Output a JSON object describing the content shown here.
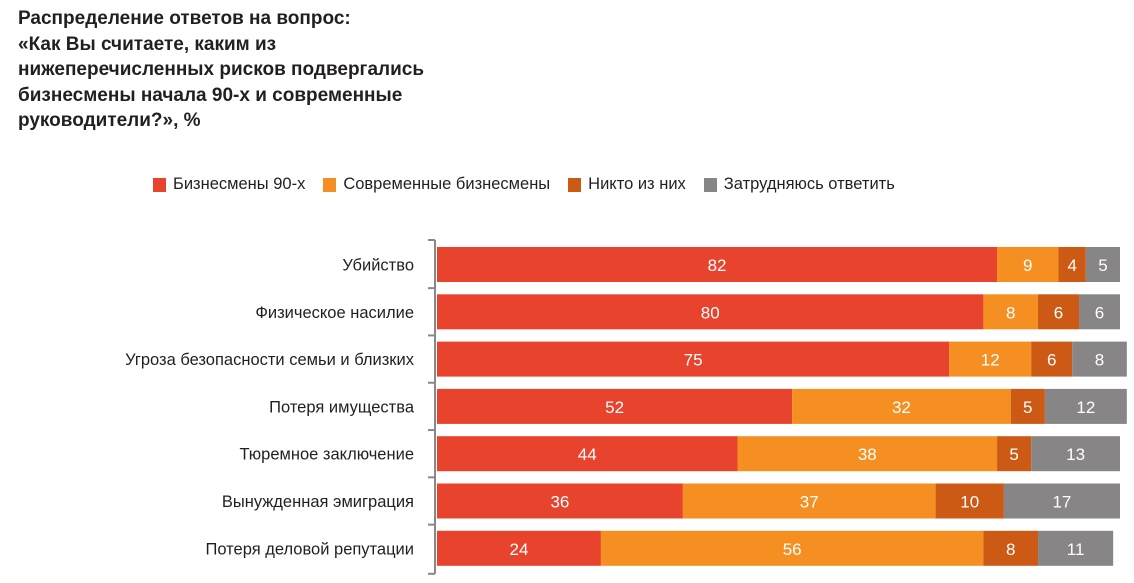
{
  "colors": {
    "s1": "#e8432d",
    "s2": "#f68f21",
    "s3": "#cc5a14",
    "s4": "#878586",
    "axis": "#888888"
  },
  "chart_data": {
    "type": "bar",
    "orientation": "horizontal",
    "stacked": true,
    "title_lines": [
      "Распределение ответов на вопрос:",
      "«Как Вы считаете, каким из",
      "нижеперечисленных рисков подвергались",
      "бизнесмены начала 90-х и современные",
      "руководители?», %"
    ],
    "xlabel": "",
    "ylabel": "",
    "xlim": [
      0,
      100
    ],
    "grid": false,
    "legend_position": "top",
    "categories": [
      "Убийство",
      "Физическое насилие",
      "Угроза безопасности семьи и близких",
      "Потеря имущества",
      "Тюремное заключение",
      "Вынужденная эмиграция",
      "Потеря деловой репутации"
    ],
    "series": [
      {
        "name": "Бизнесмены 90-х",
        "color": "#e8432d",
        "values": [
          82,
          80,
          75,
          52,
          44,
          36,
          24
        ]
      },
      {
        "name": "Современные бизнесмены",
        "color": "#f68f21",
        "values": [
          9,
          8,
          12,
          32,
          38,
          37,
          56
        ]
      },
      {
        "name": "Никто из них",
        "color": "#cc5a14",
        "values": [
          4,
          6,
          6,
          5,
          5,
          10,
          8
        ]
      },
      {
        "name": "Затрудняюсь ответить",
        "color": "#878586",
        "values": [
          5,
          6,
          8,
          12,
          13,
          17,
          11
        ]
      }
    ]
  }
}
